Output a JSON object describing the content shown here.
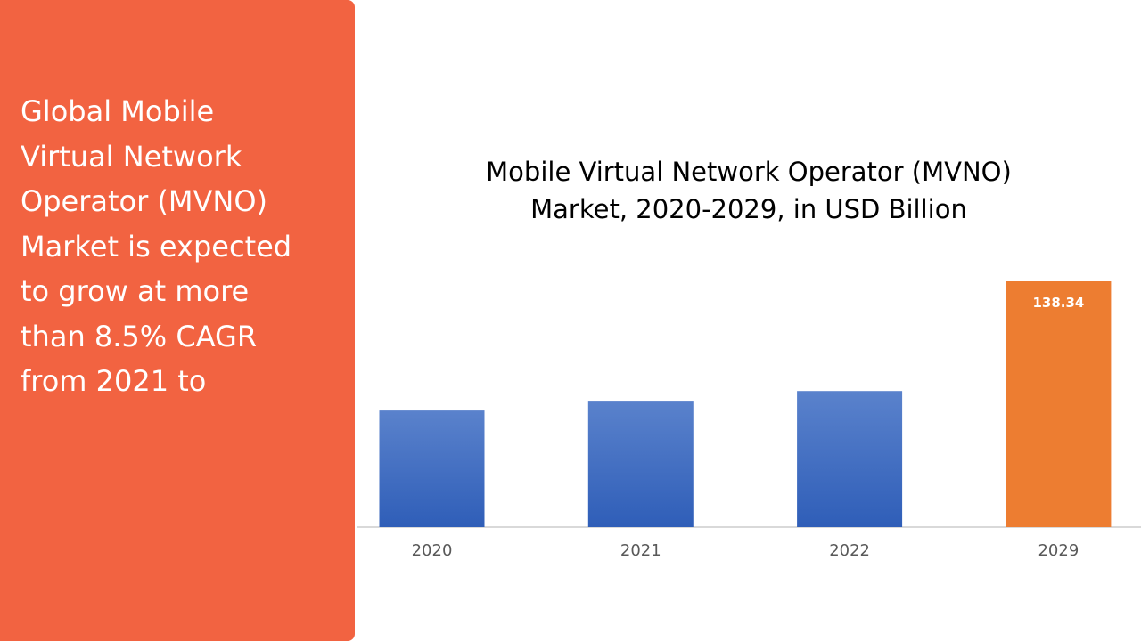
{
  "side_panel": {
    "text": "Global Mobile\nVirtual Network\nOperator (MVNO)\nMarket is expected\nto grow at more\nthan 8.5% CAGR\nfrom 2021 to",
    "background_color": "#F26341"
  },
  "chart_data": {
    "type": "bar",
    "title_line1": "Mobile Virtual Network Operator (MVNO)",
    "title_line2": "Market, 2020-2029, in USD Billion",
    "categories": [
      "2020",
      "2021",
      "2022",
      "2029"
    ],
    "values": [
      65.6,
      71.1,
      76.6,
      138.34
    ],
    "data_labels": [
      "",
      "",
      "",
      "138.34"
    ],
    "highlight_index": 3,
    "colors": {
      "bar": "#4472C4",
      "highlight": "#ED7D31",
      "axis": "#D9D9D9"
    },
    "ylim": [
      0,
      138.34
    ],
    "grid": false,
    "legend": "none"
  }
}
